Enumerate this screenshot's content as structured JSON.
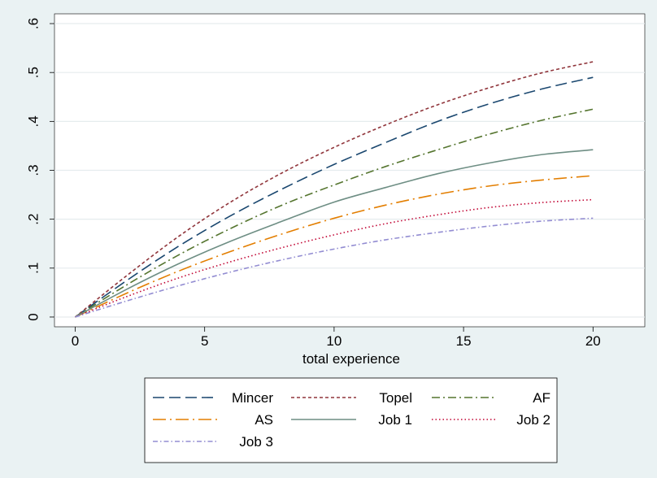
{
  "chart_data": {
    "type": "line",
    "xlabel": "total experience",
    "ylabel": "",
    "xlim": [
      -0.8,
      22
    ],
    "ylim": [
      -0.02,
      0.62
    ],
    "xticks": [
      0,
      5,
      10,
      15,
      20
    ],
    "xtick_labels": [
      "0",
      "5",
      "10",
      "15",
      "20"
    ],
    "yticks": [
      0,
      0.1,
      0.2,
      0.3,
      0.4,
      0.5,
      0.6
    ],
    "ytick_labels": [
      "0",
      ".1",
      ".2",
      ".3",
      ".4",
      ".5",
      ".6"
    ],
    "grid": true,
    "legend_position": "bottom",
    "x": [
      0,
      2,
      4,
      6,
      8,
      10,
      12,
      14,
      16,
      18,
      20
    ],
    "series": [
      {
        "name": "Mincer",
        "color": "#1a476f",
        "dash": "long-dash",
        "values": [
          0,
          0.075,
          0.145,
          0.207,
          0.262,
          0.312,
          0.357,
          0.4,
          0.436,
          0.466,
          0.49
        ]
      },
      {
        "name": "Topel",
        "color": "#90353b",
        "dash": "short-dash",
        "values": [
          0,
          0.085,
          0.165,
          0.235,
          0.295,
          0.347,
          0.393,
          0.434,
          0.469,
          0.499,
          0.522
        ]
      },
      {
        "name": "AF",
        "color": "#55752f",
        "dash": "dash-dot",
        "values": [
          0,
          0.066,
          0.127,
          0.181,
          0.229,
          0.27,
          0.308,
          0.342,
          0.374,
          0.402,
          0.425
        ]
      },
      {
        "name": "AS",
        "color": "#e37e00",
        "dash": "long-dash-dot",
        "values": [
          0,
          0.049,
          0.094,
          0.134,
          0.17,
          0.202,
          0.229,
          0.251,
          0.268,
          0.28,
          0.289
        ]
      },
      {
        "name": "Job 1",
        "color": "#6e8e84",
        "dash": "solid",
        "values": [
          0,
          0.057,
          0.109,
          0.155,
          0.196,
          0.235,
          0.265,
          0.293,
          0.315,
          0.332,
          0.342
        ]
      },
      {
        "name": "Job 2",
        "color": "#c10534",
        "dash": "dot",
        "values": [
          0,
          0.042,
          0.08,
          0.113,
          0.142,
          0.168,
          0.191,
          0.209,
          0.224,
          0.234,
          0.24
        ]
      },
      {
        "name": "Job 3",
        "color": "#938dd2",
        "dash": "dash-dot-small",
        "values": [
          0,
          0.033,
          0.064,
          0.092,
          0.117,
          0.139,
          0.158,
          0.173,
          0.186,
          0.196,
          0.202
        ]
      }
    ]
  }
}
